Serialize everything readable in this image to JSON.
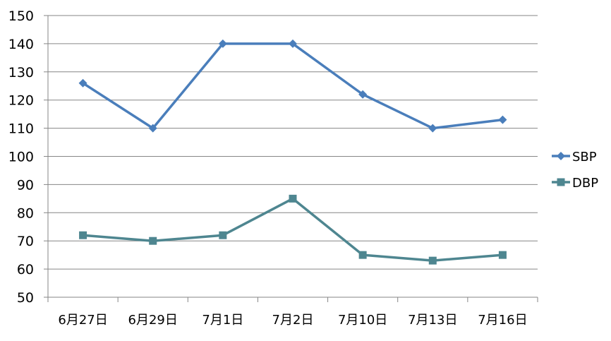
{
  "chart_data": {
    "type": "line",
    "title": "",
    "xlabel": "",
    "ylabel": "",
    "categories": [
      "6月27日",
      "6月29日",
      "7月1日",
      "7月2日",
      "7月10日",
      "7月13日",
      "7月16日"
    ],
    "ylim": [
      50,
      150
    ],
    "yticks": [
      50,
      60,
      70,
      80,
      90,
      100,
      110,
      120,
      130,
      140,
      150
    ],
    "grid": "horizontal",
    "legend_position": "right",
    "series": [
      {
        "name": "SBP",
        "values": [
          126,
          110,
          140,
          140,
          122,
          110,
          113
        ],
        "color": "#4a7ebb",
        "marker": "diamond"
      },
      {
        "name": "DBP",
        "values": [
          72,
          70,
          72,
          85,
          65,
          63,
          65
        ],
        "color": "#4e8690",
        "marker": "square"
      }
    ]
  }
}
